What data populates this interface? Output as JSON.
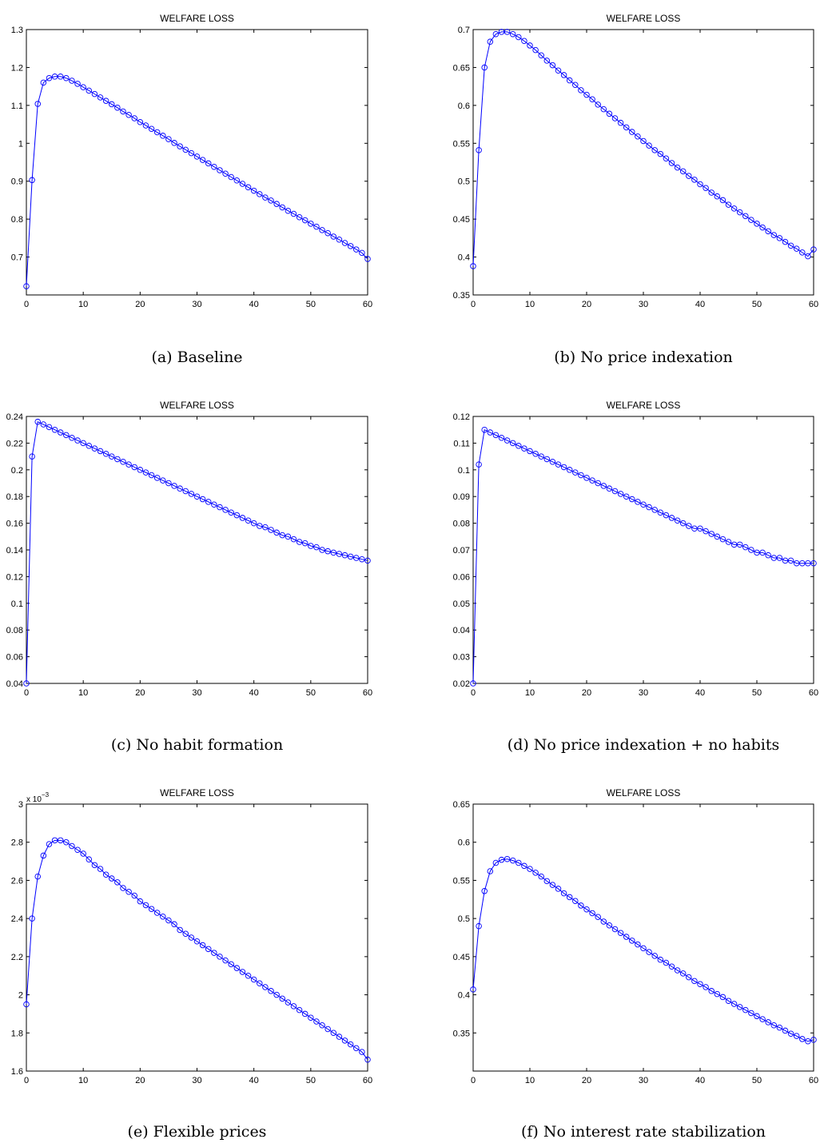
{
  "chart_data": [
    {
      "type": "line",
      "title": "WELFARE LOSS",
      "caption": "(a)  Baseline",
      "xlim": [
        0,
        60
      ],
      "ylim": [
        0.6,
        1.3
      ],
      "xticks": [
        "0",
        "10",
        "20",
        "30",
        "40",
        "50",
        "60"
      ],
      "yticks": [
        "0.7",
        "0.8",
        "0.9",
        "1",
        "1.1",
        "1.2",
        "1.3"
      ],
      "ytick_values": [
        0.7,
        0.8,
        0.9,
        1.0,
        1.1,
        1.2,
        1.3
      ],
      "y_exponent": "",
      "series": [
        {
          "marker": "circle",
          "color": "#0000ff",
          "x": [
            0,
            1,
            2,
            3,
            4,
            5,
            6,
            7,
            8,
            9,
            10,
            11,
            12,
            13,
            14,
            15,
            16,
            17,
            18,
            19,
            20,
            21,
            22,
            23,
            24,
            25,
            26,
            27,
            28,
            29,
            30,
            31,
            32,
            33,
            34,
            35,
            36,
            37,
            38,
            39,
            40,
            41,
            42,
            43,
            44,
            45,
            46,
            47,
            48,
            49,
            50,
            51,
            52,
            53,
            54,
            55,
            56,
            57,
            58,
            59,
            60
          ],
          "values": [
            0.623,
            0.903,
            1.104,
            1.16,
            1.172,
            1.176,
            1.176,
            1.172,
            1.165,
            1.157,
            1.148,
            1.139,
            1.13,
            1.121,
            1.112,
            1.103,
            1.094,
            1.084,
            1.075,
            1.066,
            1.056,
            1.047,
            1.038,
            1.029,
            1.02,
            1.011,
            1.001,
            0.992,
            0.983,
            0.974,
            0.965,
            0.956,
            0.947,
            0.938,
            0.929,
            0.92,
            0.911,
            0.902,
            0.893,
            0.884,
            0.875,
            0.866,
            0.857,
            0.849,
            0.84,
            0.831,
            0.822,
            0.814,
            0.805,
            0.797,
            0.788,
            0.78,
            0.771,
            0.763,
            0.754,
            0.746,
            0.737,
            0.729,
            0.72,
            0.711,
            0.695
          ]
        }
      ]
    },
    {
      "type": "line",
      "title": "WELFARE LOSS",
      "caption": "(b)  No price indexation",
      "xlim": [
        0,
        60
      ],
      "ylim": [
        0.35,
        0.7
      ],
      "xticks": [
        "0",
        "10",
        "20",
        "30",
        "40",
        "50",
        "60"
      ],
      "yticks": [
        "0.35",
        "0.4",
        "0.45",
        "0.5",
        "0.55",
        "0.6",
        "0.65",
        "0.7"
      ],
      "ytick_values": [
        0.35,
        0.4,
        0.45,
        0.5,
        0.55,
        0.6,
        0.65,
        0.7
      ],
      "y_exponent": "",
      "series": [
        {
          "marker": "circle",
          "color": "#0000ff",
          "x": [
            0,
            1,
            2,
            3,
            4,
            5,
            6,
            7,
            8,
            9,
            10,
            11,
            12,
            13,
            14,
            15,
            16,
            17,
            18,
            19,
            20,
            21,
            22,
            23,
            24,
            25,
            26,
            27,
            28,
            29,
            30,
            31,
            32,
            33,
            34,
            35,
            36,
            37,
            38,
            39,
            40,
            41,
            42,
            43,
            44,
            45,
            46,
            47,
            48,
            49,
            50,
            51,
            52,
            53,
            54,
            55,
            56,
            57,
            58,
            59,
            60
          ],
          "values": [
            0.388,
            0.541,
            0.65,
            0.684,
            0.694,
            0.697,
            0.697,
            0.694,
            0.69,
            0.685,
            0.679,
            0.673,
            0.666,
            0.659,
            0.653,
            0.646,
            0.64,
            0.633,
            0.627,
            0.62,
            0.614,
            0.608,
            0.601,
            0.595,
            0.589,
            0.583,
            0.577,
            0.571,
            0.565,
            0.559,
            0.553,
            0.547,
            0.541,
            0.536,
            0.53,
            0.524,
            0.518,
            0.513,
            0.507,
            0.502,
            0.496,
            0.491,
            0.485,
            0.48,
            0.475,
            0.469,
            0.464,
            0.459,
            0.454,
            0.449,
            0.444,
            0.439,
            0.434,
            0.429,
            0.425,
            0.42,
            0.415,
            0.411,
            0.406,
            0.401,
            0.41
          ]
        }
      ]
    },
    {
      "type": "line",
      "title": "WELFARE LOSS",
      "caption": "(c)  No habit formation",
      "xlim": [
        0,
        60
      ],
      "ylim": [
        0.04,
        0.24
      ],
      "xticks": [
        "0",
        "10",
        "20",
        "30",
        "40",
        "50",
        "60"
      ],
      "yticks": [
        "0.04",
        "0.06",
        "0.08",
        "0.1",
        "0.12",
        "0.14",
        "0.16",
        "0.18",
        "0.2",
        "0.22",
        "0.24"
      ],
      "ytick_values": [
        0.04,
        0.06,
        0.08,
        0.1,
        0.12,
        0.14,
        0.16,
        0.18,
        0.2,
        0.22,
        0.24
      ],
      "y_exponent": "",
      "series": [
        {
          "marker": "circle",
          "color": "#0000ff",
          "x": [
            0,
            1,
            2,
            3,
            4,
            5,
            6,
            7,
            8,
            9,
            10,
            11,
            12,
            13,
            14,
            15,
            16,
            17,
            18,
            19,
            20,
            21,
            22,
            23,
            24,
            25,
            26,
            27,
            28,
            29,
            30,
            31,
            32,
            33,
            34,
            35,
            36,
            37,
            38,
            39,
            40,
            41,
            42,
            43,
            44,
            45,
            46,
            47,
            48,
            49,
            50,
            51,
            52,
            53,
            54,
            55,
            56,
            57,
            58,
            59,
            60
          ],
          "values": [
            0.04,
            0.21,
            0.236,
            0.234,
            0.232,
            0.23,
            0.228,
            0.226,
            0.224,
            0.222,
            0.22,
            0.218,
            0.216,
            0.214,
            0.212,
            0.21,
            0.208,
            0.206,
            0.204,
            0.202,
            0.2,
            0.198,
            0.196,
            0.194,
            0.192,
            0.19,
            0.188,
            0.186,
            0.184,
            0.182,
            0.18,
            0.178,
            0.176,
            0.174,
            0.172,
            0.17,
            0.168,
            0.166,
            0.164,
            0.162,
            0.16,
            0.158,
            0.157,
            0.155,
            0.153,
            0.151,
            0.15,
            0.148,
            0.146,
            0.145,
            0.143,
            0.142,
            0.14,
            0.139,
            0.138,
            0.137,
            0.136,
            0.135,
            0.134,
            0.133,
            0.132
          ]
        }
      ]
    },
    {
      "type": "line",
      "title": "WELFARE LOSS",
      "caption": "(d)  No price indexation + no habits",
      "xlim": [
        0,
        60
      ],
      "ylim": [
        0.02,
        0.12
      ],
      "xticks": [
        "0",
        "10",
        "20",
        "30",
        "40",
        "50",
        "60"
      ],
      "yticks": [
        "0.02",
        "0.03",
        "0.04",
        "0.05",
        "0.06",
        "0.07",
        "0.08",
        "0.09",
        "0.1",
        "0.11",
        "0.12"
      ],
      "ytick_values": [
        0.02,
        0.03,
        0.04,
        0.05,
        0.06,
        0.07,
        0.08,
        0.09,
        0.1,
        0.11,
        0.12
      ],
      "y_exponent": "",
      "series": [
        {
          "marker": "circle",
          "color": "#0000ff",
          "x": [
            0,
            1,
            2,
            3,
            4,
            5,
            6,
            7,
            8,
            9,
            10,
            11,
            12,
            13,
            14,
            15,
            16,
            17,
            18,
            19,
            20,
            21,
            22,
            23,
            24,
            25,
            26,
            27,
            28,
            29,
            30,
            31,
            32,
            33,
            34,
            35,
            36,
            37,
            38,
            39,
            40,
            41,
            42,
            43,
            44,
            45,
            46,
            47,
            48,
            49,
            50,
            51,
            52,
            53,
            54,
            55,
            56,
            57,
            58,
            59,
            60
          ],
          "values": [
            0.02,
            0.102,
            0.115,
            0.114,
            0.113,
            0.112,
            0.111,
            0.11,
            0.109,
            0.108,
            0.107,
            0.106,
            0.105,
            0.104,
            0.103,
            0.102,
            0.101,
            0.1,
            0.099,
            0.098,
            0.097,
            0.096,
            0.095,
            0.094,
            0.093,
            0.092,
            0.091,
            0.09,
            0.089,
            0.088,
            0.087,
            0.086,
            0.085,
            0.084,
            0.083,
            0.082,
            0.081,
            0.08,
            0.079,
            0.078,
            0.078,
            0.077,
            0.076,
            0.075,
            0.074,
            0.073,
            0.072,
            0.072,
            0.071,
            0.07,
            0.069,
            0.069,
            0.068,
            0.067,
            0.067,
            0.066,
            0.066,
            0.065,
            0.065,
            0.065,
            0.065
          ]
        }
      ]
    },
    {
      "type": "line",
      "title": "WELFARE LOSS",
      "caption": "(e)  Flexible prices",
      "xlim": [
        0,
        60
      ],
      "ylim": [
        1.6,
        3.0
      ],
      "xticks": [
        "0",
        "10",
        "20",
        "30",
        "40",
        "50",
        "60"
      ],
      "yticks": [
        "1.6",
        "1.8",
        "2",
        "2.2",
        "2.4",
        "2.6",
        "2.8",
        "3"
      ],
      "ytick_values": [
        1.6,
        1.8,
        2.0,
        2.2,
        2.4,
        2.6,
        2.8,
        3.0
      ],
      "y_exponent": "x 10",
      "y_exponent_power": "−3",
      "series": [
        {
          "marker": "circle",
          "color": "#0000ff",
          "x": [
            0,
            1,
            2,
            3,
            4,
            5,
            6,
            7,
            8,
            9,
            10,
            11,
            12,
            13,
            14,
            15,
            16,
            17,
            18,
            19,
            20,
            21,
            22,
            23,
            24,
            25,
            26,
            27,
            28,
            29,
            30,
            31,
            32,
            33,
            34,
            35,
            36,
            37,
            38,
            39,
            40,
            41,
            42,
            43,
            44,
            45,
            46,
            47,
            48,
            49,
            50,
            51,
            52,
            53,
            54,
            55,
            56,
            57,
            58,
            59,
            60
          ],
          "values": [
            1.95,
            2.4,
            2.62,
            2.73,
            2.79,
            2.81,
            2.81,
            2.8,
            2.78,
            2.76,
            2.74,
            2.71,
            2.68,
            2.66,
            2.63,
            2.61,
            2.59,
            2.56,
            2.54,
            2.52,
            2.49,
            2.47,
            2.45,
            2.43,
            2.41,
            2.39,
            2.37,
            2.34,
            2.32,
            2.3,
            2.28,
            2.26,
            2.24,
            2.22,
            2.2,
            2.18,
            2.16,
            2.14,
            2.12,
            2.1,
            2.08,
            2.06,
            2.04,
            2.02,
            2.0,
            1.98,
            1.96,
            1.94,
            1.92,
            1.9,
            1.88,
            1.86,
            1.84,
            1.82,
            1.8,
            1.78,
            1.76,
            1.74,
            1.72,
            1.7,
            1.66
          ]
        }
      ]
    },
    {
      "type": "line",
      "title": "WELFARE LOSS",
      "caption": "(f)  No interest rate stabilization",
      "xlim": [
        0,
        60
      ],
      "ylim": [
        0.3,
        0.65
      ],
      "xticks": [
        "0",
        "10",
        "20",
        "30",
        "40",
        "50",
        "60"
      ],
      "yticks": [
        "0.35",
        "0.4",
        "0.45",
        "0.5",
        "0.55",
        "0.6",
        "0.65"
      ],
      "ytick_values": [
        0.35,
        0.4,
        0.45,
        0.5,
        0.55,
        0.6,
        0.65
      ],
      "y_exponent": "",
      "series": [
        {
          "marker": "circle",
          "color": "#0000ff",
          "x": [
            0,
            1,
            2,
            3,
            4,
            5,
            6,
            7,
            8,
            9,
            10,
            11,
            12,
            13,
            14,
            15,
            16,
            17,
            18,
            19,
            20,
            21,
            22,
            23,
            24,
            25,
            26,
            27,
            28,
            29,
            30,
            31,
            32,
            33,
            34,
            35,
            36,
            37,
            38,
            39,
            40,
            41,
            42,
            43,
            44,
            45,
            46,
            47,
            48,
            49,
            50,
            51,
            52,
            53,
            54,
            55,
            56,
            57,
            58,
            59,
            60
          ],
          "values": [
            0.407,
            0.49,
            0.536,
            0.562,
            0.573,
            0.577,
            0.578,
            0.576,
            0.573,
            0.569,
            0.565,
            0.56,
            0.555,
            0.549,
            0.544,
            0.539,
            0.533,
            0.528,
            0.523,
            0.517,
            0.512,
            0.507,
            0.502,
            0.496,
            0.491,
            0.486,
            0.481,
            0.476,
            0.471,
            0.466,
            0.461,
            0.456,
            0.451,
            0.446,
            0.442,
            0.437,
            0.432,
            0.428,
            0.423,
            0.418,
            0.414,
            0.41,
            0.405,
            0.401,
            0.397,
            0.392,
            0.388,
            0.384,
            0.38,
            0.376,
            0.372,
            0.368,
            0.364,
            0.36,
            0.357,
            0.353,
            0.349,
            0.346,
            0.342,
            0.339,
            0.341
          ]
        }
      ]
    }
  ]
}
